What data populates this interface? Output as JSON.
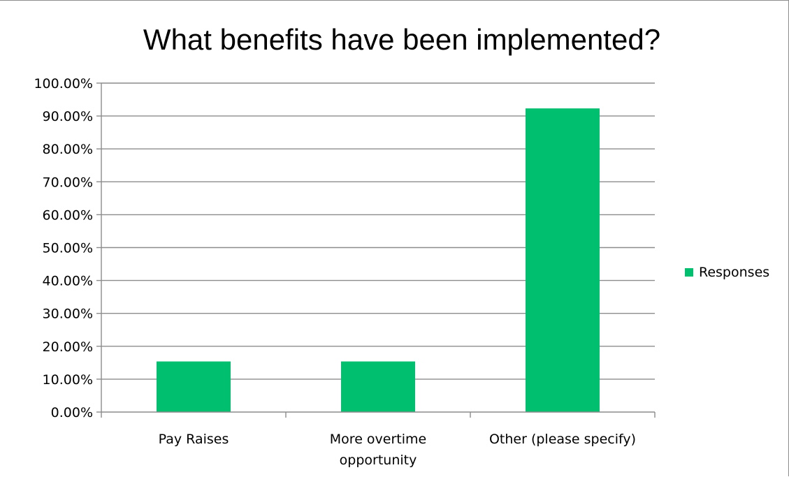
{
  "chart_data": {
    "type": "bar",
    "title": "What benefits have been implemented?",
    "xlabel": "",
    "ylabel": "",
    "categories": [
      "Pay Raises",
      "More overtime opportunity",
      "Other (please specify)"
    ],
    "category_lines": [
      [
        "Pay Raises"
      ],
      [
        "More overtime",
        "opportunity"
      ],
      [
        "Other (please specify)"
      ]
    ],
    "series": [
      {
        "name": "Responses",
        "color": "#00bf6f",
        "values": [
          15.38,
          15.38,
          92.31
        ]
      }
    ],
    "ylim": [
      0,
      100
    ],
    "yticks": [
      0,
      10,
      20,
      30,
      40,
      50,
      60,
      70,
      80,
      90,
      100
    ],
    "ytick_labels": [
      "0.00%",
      "10.00%",
      "20.00%",
      "30.00%",
      "40.00%",
      "50.00%",
      "60.00%",
      "70.00%",
      "80.00%",
      "90.00%",
      "100.00%"
    ],
    "grid": true,
    "legend_position": "right"
  }
}
